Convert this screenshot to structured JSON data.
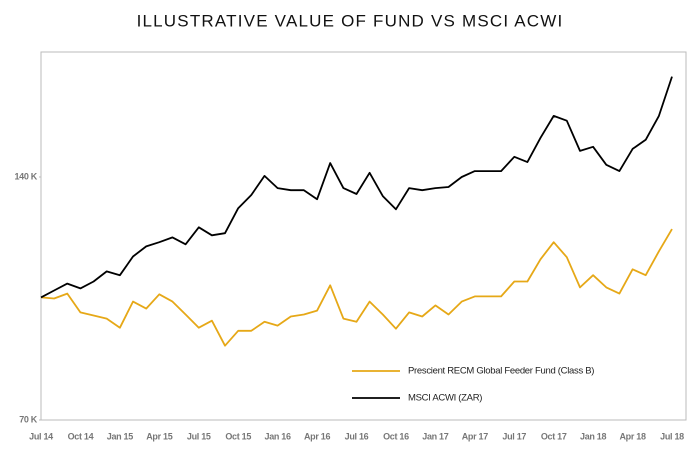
{
  "chart_data": {
    "type": "line",
    "title": "ILLUSTRATIVE VALUE OF FUND VS MSCI ACWI",
    "categories": [
      "Jul 14",
      null,
      null,
      "Oct 14",
      null,
      null,
      "Jan 15",
      null,
      null,
      "Apr 15",
      null,
      null,
      "Jul 15",
      null,
      null,
      "Oct 15",
      null,
      null,
      "Jan 16",
      null,
      null,
      "Apr 16",
      null,
      null,
      "Jul 16",
      null,
      null,
      "Oct 16",
      null,
      null,
      "Jan 17",
      null,
      null,
      "Apr 17",
      null,
      null,
      "Jul 17",
      null,
      null,
      "Oct 17",
      null,
      null,
      "Jan 18",
      null,
      null,
      "Apr 18",
      null,
      null,
      "Jul 18"
    ],
    "series": [
      {
        "name": "Prescient RECM Global Feeder Fund (Class B)",
        "color": "#e6a817",
        "values": [
          105300,
          105000,
          106400,
          101000,
          100100,
          99200,
          96600,
          104100,
          102100,
          106200,
          104100,
          100400,
          96600,
          98600,
          91400,
          95700,
          95700,
          98300,
          97200,
          99800,
          100400,
          101500,
          108800,
          99200,
          98300,
          104100,
          100400,
          96300,
          101000,
          99800,
          103000,
          100400,
          104100,
          105600,
          105600,
          105600,
          109900,
          109900,
          116300,
          121200,
          116900,
          108200,
          111700,
          108200,
          106400,
          113400,
          111700,
          118600,
          125000
        ]
      },
      {
        "name": "MSCI ACWI (ZAR)",
        "color": "#000000",
        "values": [
          105300,
          107300,
          109300,
          107900,
          109900,
          112800,
          111700,
          117100,
          120000,
          121200,
          122600,
          120600,
          125500,
          123200,
          123800,
          131000,
          134800,
          140300,
          136800,
          136200,
          136200,
          133600,
          144000,
          136800,
          135100,
          141200,
          134500,
          130700,
          136800,
          136200,
          136800,
          137100,
          140000,
          141700,
          141700,
          141700,
          145800,
          144300,
          151300,
          157600,
          156200,
          147500,
          148700,
          143500,
          141700,
          148100,
          150700,
          157600,
          168900
        ]
      }
    ],
    "ylim": [
      70000,
      176000
    ],
    "yticks": [
      {
        "value": 70000,
        "label": "70 K"
      },
      {
        "value": 140000,
        "label": "140 K"
      }
    ],
    "grid": false,
    "legend": "lower right"
  }
}
